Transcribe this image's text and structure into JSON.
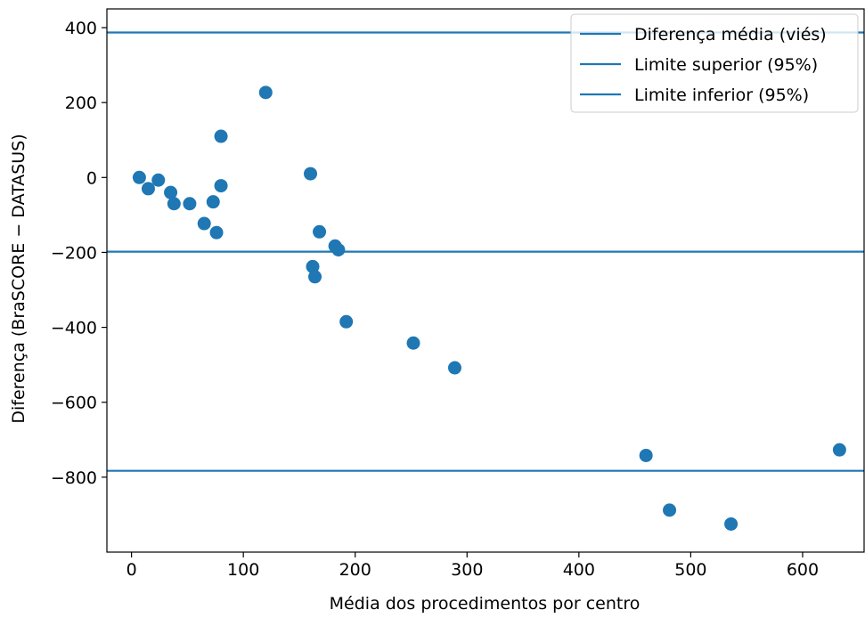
{
  "chart_data": {
    "type": "scatter",
    "xlabel": "Média dos procedimentos por centro",
    "ylabel": "Diferença (BraSCORE − DATASUS)",
    "xlim": [
      -22,
      655
    ],
    "ylim": [
      -1000,
      450
    ],
    "xticks": [
      0,
      100,
      200,
      300,
      400,
      500,
      600
    ],
    "yticks": [
      -800,
      -600,
      -400,
      -200,
      0,
      200,
      400
    ],
    "grid": false,
    "legend_position": "top-right",
    "color": "#1f77b4",
    "points": [
      {
        "x": 7,
        "y": 0
      },
      {
        "x": 15,
        "y": -30
      },
      {
        "x": 24,
        "y": -7
      },
      {
        "x": 35,
        "y": -40
      },
      {
        "x": 38,
        "y": -70
      },
      {
        "x": 52,
        "y": -70
      },
      {
        "x": 65,
        "y": -123
      },
      {
        "x": 73,
        "y": -65
      },
      {
        "x": 76,
        "y": -147
      },
      {
        "x": 80,
        "y": -22
      },
      {
        "x": 80,
        "y": 110
      },
      {
        "x": 120,
        "y": 227
      },
      {
        "x": 160,
        "y": 10
      },
      {
        "x": 162,
        "y": -238
      },
      {
        "x": 164,
        "y": -265
      },
      {
        "x": 168,
        "y": -145
      },
      {
        "x": 182,
        "y": -183
      },
      {
        "x": 185,
        "y": -193
      },
      {
        "x": 192,
        "y": -385
      },
      {
        "x": 252,
        "y": -442
      },
      {
        "x": 289,
        "y": -508
      },
      {
        "x": 460,
        "y": -742
      },
      {
        "x": 481,
        "y": -888
      },
      {
        "x": 536,
        "y": -925
      },
      {
        "x": 633,
        "y": -727
      }
    ],
    "hlines": [
      {
        "name": "Diferença média (viés)",
        "y": -198
      },
      {
        "name": "Limite superior (95%)",
        "y": 387
      },
      {
        "name": "Limite inferior (95%)",
        "y": -783
      }
    ],
    "legend": [
      "Diferença média (viés)",
      "Limite superior (95%)",
      "Limite inferior (95%)"
    ]
  }
}
